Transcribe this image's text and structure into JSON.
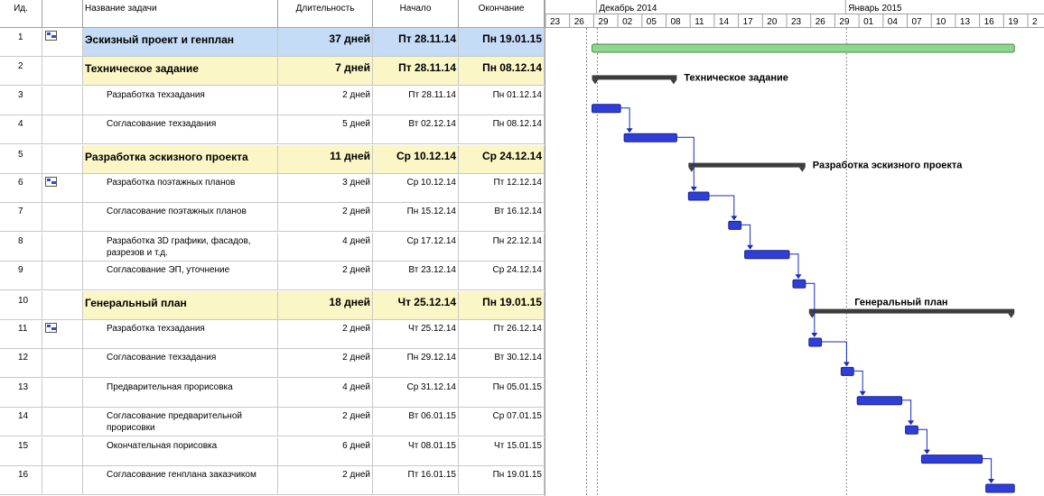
{
  "columns": {
    "id": "Ид.",
    "name": "Название задачи",
    "duration": "Длительность",
    "start": "Начало",
    "end": "Окончание"
  },
  "timeline": {
    "months": [
      {
        "label": "Декабрь 2014"
      },
      {
        "label": "Январь 2015"
      }
    ],
    "days": [
      "23",
      "26",
      "29",
      "02",
      "05",
      "08",
      "11",
      "14",
      "17",
      "20",
      "23",
      "26",
      "29",
      "01",
      "04",
      "07",
      "10",
      "13",
      "16",
      "19",
      "2"
    ]
  },
  "tasks": [
    {
      "id": "1",
      "name": "Эскизный проект и генплан",
      "duration": "37 дней",
      "start": "Пт 28.11.14",
      "end": "Пн 19.01.15",
      "type": "project",
      "icon": "table-icon"
    },
    {
      "id": "2",
      "name": "Техническое задание",
      "duration": "7 дней",
      "start": "Пт 28.11.14",
      "end": "Пн 08.12.14",
      "type": "summary",
      "bar_label": "Техническое задание"
    },
    {
      "id": "3",
      "name": "Разработка техзадания",
      "duration": "2 дней",
      "start": "Пт 28.11.14",
      "end": "Пн 01.12.14",
      "type": "task"
    },
    {
      "id": "4",
      "name": "Согласование техзадания",
      "duration": "5 дней",
      "start": "Вт 02.12.14",
      "end": "Пн 08.12.14",
      "type": "task"
    },
    {
      "id": "5",
      "name": "Разработка эскизного проекта",
      "duration": "11 дней",
      "start": "Ср 10.12.14",
      "end": "Ср 24.12.14",
      "type": "summary",
      "bar_label": "Разработка эскизного проекта"
    },
    {
      "id": "6",
      "name": "Разработка поэтажных планов",
      "duration": "3 дней",
      "start": "Ср 10.12.14",
      "end": "Пт 12.12.14",
      "type": "task",
      "icon": "table-icon"
    },
    {
      "id": "7",
      "name": "Согласование поэтажных планов",
      "duration": "2 дней",
      "start": "Пн 15.12.14",
      "end": "Вт 16.12.14",
      "type": "task"
    },
    {
      "id": "8",
      "name": "Разработка 3D графики, фасадов, разрезов и т.д.",
      "duration": "4 дней",
      "start": "Ср 17.12.14",
      "end": "Пн 22.12.14",
      "type": "task"
    },
    {
      "id": "9",
      "name": "Согласование ЭП, уточнение",
      "duration": "2 дней",
      "start": "Вт 23.12.14",
      "end": "Ср 24.12.14",
      "type": "task"
    },
    {
      "id": "10",
      "name": "Генеральный план",
      "duration": "18 дней",
      "start": "Чт 25.12.14",
      "end": "Пн 19.01.15",
      "type": "summary",
      "bar_label": "Генеральный план"
    },
    {
      "id": "11",
      "name": "Разработка техзадания",
      "duration": "2 дней",
      "start": "Чт 25.12.14",
      "end": "Пт 26.12.14",
      "type": "task",
      "icon": "table-icon"
    },
    {
      "id": "12",
      "name": "Согласование техзадания",
      "duration": "2 дней",
      "start": "Пн 29.12.14",
      "end": "Вт 30.12.14",
      "type": "task"
    },
    {
      "id": "13",
      "name": "Предварительная прорисовка",
      "duration": "4 дней",
      "start": "Ср 31.12.14",
      "end": "Пн 05.01.15",
      "type": "task"
    },
    {
      "id": "14",
      "name": "Согласование предварительной прорисовки",
      "duration": "2 дней",
      "start": "Вт 06.01.15",
      "end": "Ср 07.01.15",
      "type": "task"
    },
    {
      "id": "15",
      "name": "Окончательная порисовка",
      "duration": "6 дней",
      "start": "Чт 08.01.15",
      "end": "Чт 15.01.15",
      "type": "task"
    },
    {
      "id": "16",
      "name": "Согласование генплана заказчиком",
      "duration": "2 дней",
      "start": "Пт 16.01.15",
      "end": "Пн 19.01.15",
      "type": "task"
    }
  ],
  "gantt_bars": [
    {
      "row": 0,
      "start": "2014-11-28",
      "end": "2015-01-19",
      "kind": "project"
    },
    {
      "row": 1,
      "start": "2014-11-28",
      "end": "2014-12-08",
      "kind": "summary"
    },
    {
      "row": 2,
      "start": "2014-11-28",
      "end": "2014-12-01",
      "kind": "task"
    },
    {
      "row": 3,
      "start": "2014-12-02",
      "end": "2014-12-08",
      "kind": "task"
    },
    {
      "row": 4,
      "start": "2014-12-10",
      "end": "2014-12-24",
      "kind": "summary"
    },
    {
      "row": 5,
      "start": "2014-12-10",
      "end": "2014-12-12",
      "kind": "task"
    },
    {
      "row": 6,
      "start": "2014-12-15",
      "end": "2014-12-16",
      "kind": "task"
    },
    {
      "row": 7,
      "start": "2014-12-17",
      "end": "2014-12-22",
      "kind": "task"
    },
    {
      "row": 8,
      "start": "2014-12-23",
      "end": "2014-12-24",
      "kind": "task"
    },
    {
      "row": 9,
      "start": "2014-12-25",
      "end": "2015-01-19",
      "kind": "summary"
    },
    {
      "row": 10,
      "start": "2014-12-25",
      "end": "2014-12-26",
      "kind": "task"
    },
    {
      "row": 11,
      "start": "2014-12-29",
      "end": "2014-12-30",
      "kind": "task"
    },
    {
      "row": 12,
      "start": "2014-12-31",
      "end": "2015-01-05",
      "kind": "task"
    },
    {
      "row": 13,
      "start": "2015-01-06",
      "end": "2015-01-07",
      "kind": "task"
    },
    {
      "row": 14,
      "start": "2015-01-08",
      "end": "2015-01-15",
      "kind": "task"
    },
    {
      "row": 15,
      "start": "2015-01-16",
      "end": "2015-01-19",
      "kind": "task"
    }
  ],
  "colors": {
    "task_bar": "#2f3fd6",
    "summary_bar": "#3c3c3c",
    "project_bar": "#8fd48f",
    "summary_row": "#fbf6c6",
    "project_row": "#c6dbf5",
    "link": "#1a2bb8"
  }
}
